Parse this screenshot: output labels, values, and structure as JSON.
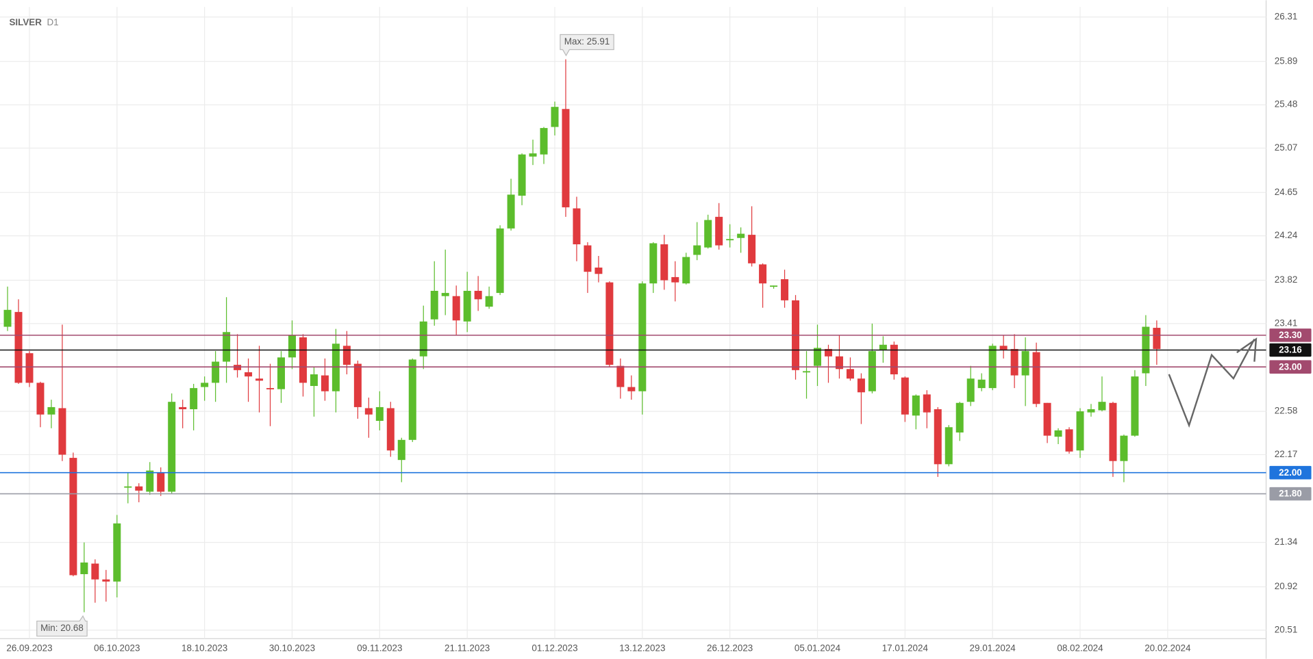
{
  "chart_data": {
    "type": "candlestick",
    "title": "SILVER",
    "subtitle": "D1",
    "x": [
      0,
      1,
      2,
      3,
      4,
      5,
      6,
      7,
      8,
      9,
      10,
      11,
      12,
      13,
      14,
      15,
      16,
      17,
      18,
      19,
      20,
      21,
      22,
      23,
      24,
      25,
      26,
      27,
      28,
      29,
      30,
      31,
      32,
      33,
      34,
      35,
      36,
      37,
      38,
      39,
      40,
      41,
      42,
      43,
      44,
      45,
      46,
      47,
      48,
      49,
      50,
      51,
      52,
      53,
      54,
      55,
      56,
      57,
      58,
      59,
      60,
      61,
      62,
      63,
      64,
      65,
      66,
      67,
      68,
      69,
      70,
      71,
      72,
      73,
      74,
      75,
      76,
      77,
      78,
      79,
      80,
      81,
      82,
      83,
      84,
      85,
      86,
      87,
      88,
      89,
      90,
      91,
      92,
      93,
      94,
      95,
      96,
      97,
      98,
      99,
      100,
      101,
      102,
      103,
      104,
      105
    ],
    "open": [
      23.38,
      23.52,
      23.13,
      22.85,
      22.55,
      22.61,
      22.14,
      21.04,
      21.14,
      20.99,
      20.97,
      21.86,
      21.87,
      21.82,
      22.0,
      21.82,
      22.62,
      22.6,
      22.81,
      22.85,
      23.05,
      23.02,
      22.95,
      22.89,
      22.8,
      22.79,
      23.09,
      23.28,
      22.82,
      22.92,
      22.77,
      23.2,
      23.03,
      22.61,
      22.49,
      22.61,
      22.12,
      22.31,
      23.1,
      23.45,
      23.67,
      23.67,
      23.43,
      23.72,
      23.57,
      23.7,
      24.31,
      24.62,
      24.99,
      25.01,
      25.27,
      25.44,
      24.5,
      24.15,
      23.94,
      23.8,
      23.01,
      22.81,
      22.77,
      23.79,
      24.16,
      23.85,
      23.79,
      24.06,
      24.13,
      24.42,
      24.2,
      24.22,
      24.25,
      23.97,
      23.76,
      23.83,
      23.63,
      22.95,
      23.01,
      23.17,
      23.1,
      22.98,
      22.89,
      22.77,
      23.16,
      23.21,
      22.9,
      22.54,
      22.74,
      22.6,
      22.08,
      22.38,
      22.67,
      22.8,
      22.8,
      23.2,
      23.17,
      22.92,
      23.14,
      22.66,
      22.34,
      22.41,
      22.21,
      22.57,
      22.59,
      22.66,
      22.11,
      22.35,
      22.94,
      23.37
    ],
    "high": [
      23.76,
      23.64,
      23.15,
      22.86,
      22.69,
      23.4,
      22.19,
      21.34,
      21.18,
      21.08,
      21.6,
      22.0,
      21.9,
      22.1,
      22.05,
      22.75,
      22.69,
      22.84,
      22.91,
      23.15,
      23.66,
      23.31,
      23.08,
      23.2,
      23.03,
      23.15,
      23.44,
      23.31,
      23.0,
      23.08,
      23.36,
      23.34,
      23.06,
      22.71,
      22.77,
      22.67,
      22.33,
      23.08,
      23.58,
      24.0,
      24.11,
      23.77,
      23.9,
      23.86,
      23.76,
      24.34,
      24.78,
      25.02,
      25.15,
      25.27,
      25.51,
      25.91,
      24.61,
      24.18,
      24.05,
      23.81,
      23.08,
      22.92,
      23.81,
      24.18,
      24.25,
      24.0,
      24.08,
      24.37,
      24.44,
      24.55,
      24.35,
      24.32,
      24.52,
      23.98,
      23.77,
      23.92,
      23.68,
      23.15,
      23.4,
      23.21,
      23.3,
      23.09,
      22.94,
      23.41,
      23.29,
      23.24,
      22.91,
      22.74,
      22.78,
      22.62,
      22.45,
      22.67,
      23.01,
      22.94,
      23.22,
      23.3,
      23.31,
      23.28,
      23.23,
      22.66,
      22.42,
      22.43,
      22.61,
      22.65,
      22.91,
      22.67,
      22.36,
      22.97,
      23.49,
      23.44
    ],
    "low": [
      23.34,
      22.84,
      22.81,
      22.43,
      22.42,
      22.11,
      21.02,
      20.68,
      20.77,
      20.78,
      20.82,
      21.71,
      21.72,
      21.79,
      21.78,
      21.8,
      22.42,
      22.4,
      22.68,
      22.67,
      22.85,
      22.9,
      22.67,
      22.57,
      22.44,
      22.66,
      22.98,
      22.72,
      22.53,
      22.68,
      22.57,
      22.93,
      22.51,
      22.33,
      22.4,
      22.15,
      21.91,
      22.29,
      22.98,
      23.39,
      23.49,
      23.3,
      23.33,
      23.53,
      23.55,
      23.68,
      24.29,
      24.53,
      24.91,
      24.92,
      25.19,
      24.42,
      24.0,
      23.7,
      23.8,
      23.0,
      22.7,
      22.69,
      22.55,
      23.7,
      23.73,
      23.62,
      23.78,
      24.01,
      24.12,
      24.11,
      24.13,
      24.08,
      23.95,
      23.56,
      23.74,
      23.56,
      22.88,
      22.7,
      22.82,
      22.85,
      22.89,
      22.87,
      22.46,
      22.75,
      23.04,
      22.88,
      22.48,
      22.41,
      22.42,
      21.96,
      22.06,
      22.3,
      22.63,
      22.77,
      22.78,
      23.08,
      22.8,
      22.63,
      22.62,
      22.28,
      22.27,
      22.18,
      22.14,
      22.53,
      22.58,
      21.96,
      21.91,
      22.34,
      22.82,
      23.02
    ],
    "close": [
      23.54,
      22.85,
      22.85,
      22.55,
      22.62,
      22.17,
      21.03,
      21.15,
      20.99,
      20.97,
      21.52,
      21.87,
      21.83,
      22.02,
      21.82,
      22.67,
      22.6,
      22.8,
      22.85,
      23.05,
      23.33,
      22.97,
      22.91,
      22.87,
      22.79,
      23.09,
      23.3,
      22.85,
      22.93,
      22.77,
      23.22,
      23.02,
      22.62,
      22.55,
      22.62,
      22.21,
      22.31,
      23.07,
      23.43,
      23.72,
      23.7,
      23.44,
      23.72,
      23.64,
      23.67,
      24.31,
      24.63,
      25.01,
      25.02,
      25.26,
      25.46,
      24.51,
      24.16,
      23.9,
      23.88,
      23.02,
      22.81,
      22.77,
      23.79,
      24.17,
      23.82,
      23.8,
      24.04,
      24.15,
      24.39,
      24.15,
      24.21,
      24.26,
      23.98,
      23.79,
      23.77,
      23.63,
      22.97,
      22.96,
      23.18,
      23.1,
      22.98,
      22.89,
      22.76,
      23.15,
      23.21,
      22.93,
      22.55,
      22.73,
      22.57,
      22.08,
      22.43,
      22.66,
      22.89,
      22.88,
      23.2,
      23.16,
      22.92,
      23.15,
      22.65,
      22.35,
      22.4,
      22.2,
      22.58,
      22.6,
      22.67,
      22.11,
      22.35,
      22.91,
      23.38,
      23.17
    ],
    "up_color": "#5cbd2c",
    "down_color": "#e03a3e",
    "xlim": [
      -0.69,
      114.84
    ],
    "xticks": [
      {
        "value": 2,
        "label": "26.09.2023"
      },
      {
        "value": 10,
        "label": "06.10.2023"
      },
      {
        "value": 18,
        "label": "18.10.2023"
      },
      {
        "value": 26,
        "label": "30.10.2023"
      },
      {
        "value": 34,
        "label": "09.11.2023"
      },
      {
        "value": 42,
        "label": "21.11.2023"
      },
      {
        "value": 50,
        "label": "01.12.2023"
      },
      {
        "value": 58,
        "label": "13.12.2023"
      },
      {
        "value": 66,
        "label": "26.12.2023"
      },
      {
        "value": 74,
        "label": "05.01.2024"
      },
      {
        "value": 82,
        "label": "17.01.2024"
      },
      {
        "value": 90,
        "label": "29.01.2024"
      },
      {
        "value": 98,
        "label": "08.02.2024"
      },
      {
        "value": 106,
        "label": "20.02.2024"
      }
    ],
    "ylim": [
      20.43,
      26.405
    ],
    "yticks": [
      20.51,
      20.92,
      21.34,
      22.17,
      22.58,
      23.41,
      23.82,
      24.24,
      24.65,
      25.07,
      25.48,
      25.89,
      26.31
    ],
    "grid": true,
    "levels": [
      {
        "value": 23.3,
        "label": "23.30",
        "color": "#a24a6e"
      },
      {
        "value": 23.16,
        "color": "#111111"
      },
      {
        "value": 23,
        "label": "23.00",
        "color": "#a24a6e"
      },
      {
        "value": 22,
        "label": "22.00",
        "color": "#1f74dd"
      },
      {
        "value": 21.8,
        "label": "21.80",
        "color": "#9a9ca6"
      }
    ],
    "annotations": [
      "Max: 25.91",
      "Min: 20.68"
    ]
  }
}
